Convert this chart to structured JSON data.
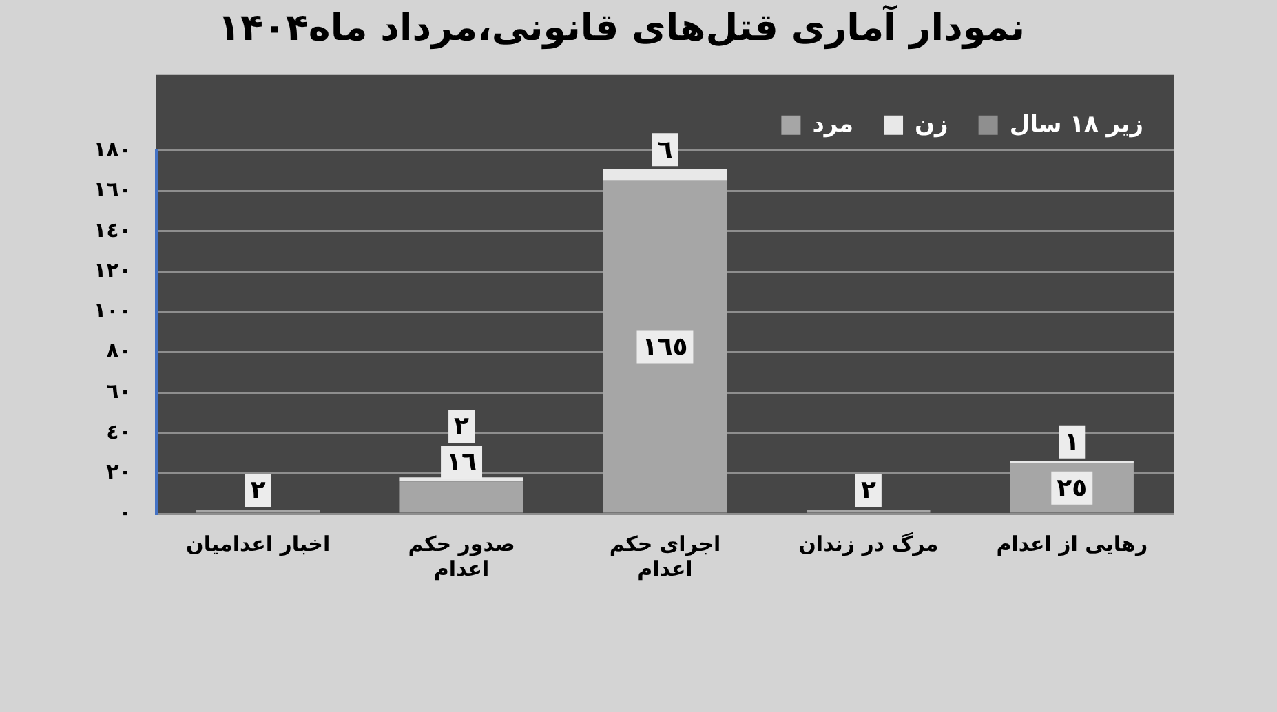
{
  "chart_data": {
    "type": "bar",
    "title": "نمودار آماری قتل‌های قانونی،مرداد ماه۱۴۰۴",
    "categories": [
      "اخبار اعدامیان",
      "صدور حکم اعدام",
      "اجرای حکم اعدام",
      "مرگ در زندان",
      "رهایی از اعدام"
    ],
    "series": [
      {
        "name": "مرد",
        "color": "#a6a6a6",
        "values": [
          2,
          16,
          165,
          2,
          25
        ],
        "value_labels": [
          "٢",
          "١٦",
          "١٦٥",
          "٢",
          "٢٥"
        ]
      },
      {
        "name": "زن",
        "color": "#e8e8e8",
        "values": [
          null,
          2,
          6,
          null,
          1
        ],
        "value_labels": [
          null,
          "٢",
          "٦",
          null,
          "١"
        ]
      },
      {
        "name": "زیر ۱۸ سال",
        "color": "#8f8f8f",
        "values": [
          null,
          null,
          null,
          null,
          null
        ]
      }
    ],
    "stacked": true,
    "ylim": [
      0,
      180
    ],
    "yticks": [
      {
        "value": 0,
        "label": "٠"
      },
      {
        "value": 20,
        "label": "٢٠"
      },
      {
        "value": 40,
        "label": "٤٠"
      },
      {
        "value": 60,
        "label": "٦٠"
      },
      {
        "value": 80,
        "label": "٨٠"
      },
      {
        "value": 100,
        "label": "١٠٠"
      },
      {
        "value": 120,
        "label": "١٢٠"
      },
      {
        "value": 140,
        "label": "١٤٠"
      },
      {
        "value": 160,
        "label": "١٦٠"
      },
      {
        "value": 180,
        "label": "١٨٠"
      }
    ],
    "grid": "y",
    "legend": "top right"
  }
}
